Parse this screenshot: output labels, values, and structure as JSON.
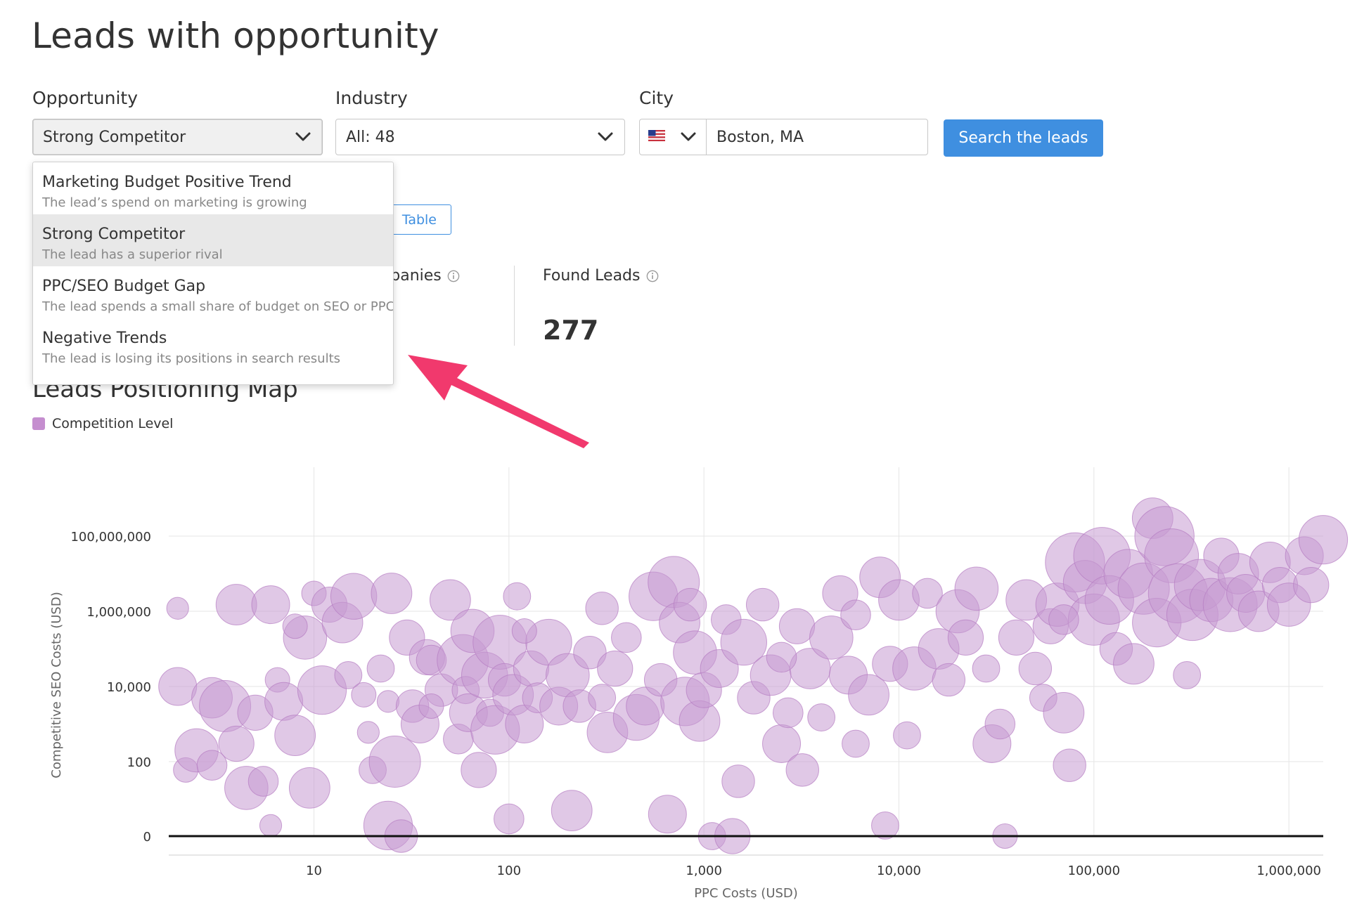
{
  "page": {
    "title": "Leads with opportunity"
  },
  "filters": {
    "opportunity": {
      "label": "Opportunity",
      "value": "Strong Competitor"
    },
    "industry": {
      "label": "Industry",
      "value": "All: 48"
    },
    "city": {
      "label": "City",
      "value": "Boston, MA",
      "country_icon": "us-flag-icon"
    },
    "search_button": "Search the leads"
  },
  "dropdown": {
    "items": [
      {
        "title": "Marketing Budget Positive Trend",
        "description": "The lead’s spend on marketing is growing",
        "selected": false
      },
      {
        "title": "Strong Competitor",
        "description": "The lead has a superior rival",
        "selected": true
      },
      {
        "title": "PPC/SEO Budget Gap",
        "description": "The lead spends a small share of budget on SEO or PPC",
        "selected": false
      },
      {
        "title": "Negative Trends",
        "description": "The lead is losing its positions in search results",
        "selected": false
      }
    ]
  },
  "view_toggle": {
    "table_label": "Table"
  },
  "stats": {
    "companies": {
      "label": "Companies"
    },
    "found_leads": {
      "label": "Found Leads",
      "value": "277"
    }
  },
  "map_section": {
    "title": "Leads Positioning Map",
    "legend": "Competition Level"
  },
  "colors": {
    "accent": "#3f8fe0",
    "bubble_fill": "#c79ad1",
    "bubble_stroke": "#b57cc2",
    "arrow": "#f1396d"
  },
  "chart_data": {
    "type": "scatter",
    "xlabel": "PPC Costs (USD)",
    "ylabel": "Competitive SEO Costs (USD)",
    "x_scale": "log",
    "y_scale": "log",
    "x_ticks": [
      {
        "value": 10,
        "label": "10"
      },
      {
        "value": 100,
        "label": "100"
      },
      {
        "value": 1000,
        "label": "1,000"
      },
      {
        "value": 10000,
        "label": "10,000"
      },
      {
        "value": 100000,
        "label": "100,000"
      },
      {
        "value": 1000000,
        "label": "1,000,000"
      }
    ],
    "y_ticks": [
      {
        "value": 0,
        "label": "0"
      },
      {
        "value": 100,
        "label": "100"
      },
      {
        "value": 10000,
        "label": "10,000"
      },
      {
        "value": 1000000,
        "label": "1,000,000"
      },
      {
        "value": 100000000,
        "label": "100,000,000"
      }
    ],
    "xlim": [
      1.8,
      1500000
    ],
    "grid": true,
    "legend": "top-left",
    "series": [
      {
        "name": "Competition Level",
        "points": [
          [
            2,
            1200000,
            0.2
          ],
          [
            2,
            10000,
            0.5
          ],
          [
            2.2,
            60,
            0.25
          ],
          [
            2.5,
            200,
            0.6
          ],
          [
            3,
            5000,
            0.55
          ],
          [
            3.5,
            3000,
            0.75
          ],
          [
            4,
            1500000,
            0.55
          ],
          [
            4,
            300,
            0.45
          ],
          [
            4.5,
            20,
            0.6
          ],
          [
            5,
            2000,
            0.45
          ],
          [
            6,
            1500000,
            0.5
          ],
          [
            5.5,
            30,
            0.35
          ],
          [
            6,
            2,
            0.2
          ],
          [
            6.5,
            15000,
            0.25
          ],
          [
            7,
            4000,
            0.5
          ],
          [
            8,
            500,
            0.55
          ],
          [
            9,
            200000,
            0.6
          ],
          [
            9.5,
            20,
            0.55
          ],
          [
            10,
            3000000,
            0.25
          ],
          [
            11,
            8000,
            0.7
          ],
          [
            12,
            1500000,
            0.45
          ],
          [
            14,
            500000,
            0.55
          ],
          [
            16,
            2500000,
            0.65
          ],
          [
            18,
            6000,
            0.25
          ],
          [
            19,
            600,
            0.2
          ],
          [
            20,
            60,
            0.3
          ],
          [
            22,
            30000,
            0.3
          ],
          [
            24,
            4000,
            0.2
          ],
          [
            25,
            3000000,
            0.55
          ],
          [
            24,
            2,
            0.7
          ],
          [
            26,
            100,
            0.75
          ],
          [
            28,
            0.5,
            0.4
          ],
          [
            30,
            200000,
            0.45
          ],
          [
            32,
            3000,
            0.4
          ],
          [
            35,
            1000,
            0.5
          ],
          [
            38,
            60000,
            0.45
          ],
          [
            40,
            50000,
            0.35
          ],
          [
            45,
            8000,
            0.4
          ],
          [
            50,
            2000000,
            0.55
          ],
          [
            55,
            400,
            0.35
          ],
          [
            58,
            50000,
            0.75
          ],
          [
            60,
            8000,
            0.3
          ],
          [
            62,
            2000,
            0.5
          ],
          [
            65,
            300000,
            0.6
          ],
          [
            70,
            60,
            0.45
          ],
          [
            75,
            20000,
            0.65
          ],
          [
            80,
            2000,
            0.3
          ],
          [
            85,
            700,
            0.7
          ],
          [
            90,
            150000,
            0.8
          ],
          [
            95,
            15000,
            0.4
          ],
          [
            100,
            3,
            0.35
          ],
          [
            105,
            6000,
            0.55
          ],
          [
            110,
            2500000,
            0.3
          ],
          [
            120,
            1000,
            0.5
          ],
          [
            130,
            30000,
            0.45
          ],
          [
            140,
            5000,
            0.35
          ],
          [
            160,
            150000,
            0.65
          ],
          [
            180,
            3000,
            0.5
          ],
          [
            200,
            20000,
            0.6
          ],
          [
            210,
            5,
            0.55
          ],
          [
            230,
            3000,
            0.4
          ],
          [
            260,
            80000,
            0.4
          ],
          [
            300,
            5000,
            0.3
          ],
          [
            320,
            600,
            0.55
          ],
          [
            350,
            30000,
            0.45
          ],
          [
            400,
            200000,
            0.35
          ],
          [
            450,
            1500,
            0.65
          ],
          [
            500,
            3000,
            0.5
          ],
          [
            550,
            2500000,
            0.7
          ],
          [
            600,
            15000,
            0.4
          ],
          [
            650,
            4,
            0.5
          ],
          [
            700,
            6000000,
            0.75
          ],
          [
            750,
            500000,
            0.55
          ],
          [
            800,
            4000,
            0.7
          ],
          [
            850,
            1500000,
            0.4
          ],
          [
            900,
            80000,
            0.6
          ],
          [
            950,
            1200,
            0.55
          ],
          [
            1000,
            8000,
            0.45
          ],
          [
            1100,
            0.5,
            0.3
          ],
          [
            1200,
            30000,
            0.5
          ],
          [
            1300,
            600000,
            0.35
          ],
          [
            1400,
            0.5,
            0.45
          ],
          [
            1600,
            150000,
            0.65
          ],
          [
            1800,
            5000,
            0.4
          ],
          [
            2000,
            1500000,
            0.4
          ],
          [
            2200,
            20000,
            0.55
          ],
          [
            2500,
            300,
            0.5
          ],
          [
            2700,
            2000,
            0.35
          ],
          [
            3000,
            400000,
            0.45
          ],
          [
            3200,
            60,
            0.4
          ],
          [
            3500,
            30000,
            0.55
          ],
          [
            4000,
            1500,
            0.3
          ],
          [
            4500,
            200000,
            0.6
          ],
          [
            5000,
            3000000,
            0.45
          ],
          [
            5500,
            20000,
            0.5
          ],
          [
            6000,
            800000,
            0.35
          ],
          [
            7000,
            6000,
            0.55
          ],
          [
            8000,
            8000000,
            0.55
          ],
          [
            8500,
            2,
            0.3
          ],
          [
            9000,
            40000,
            0.45
          ],
          [
            10000,
            2000000,
            0.55
          ],
          [
            11000,
            500,
            0.3
          ],
          [
            12000,
            30000,
            0.6
          ],
          [
            14000,
            3000000,
            0.35
          ],
          [
            16000,
            100000,
            0.55
          ],
          [
            18000,
            15000,
            0.4
          ],
          [
            20000,
            1000000,
            0.6
          ],
          [
            22000,
            200000,
            0.45
          ],
          [
            25000,
            4000000,
            0.6
          ],
          [
            28000,
            30000,
            0.3
          ],
          [
            30000,
            300,
            0.5
          ],
          [
            33000,
            1000,
            0.35
          ],
          [
            35000,
            0.5,
            0.25
          ],
          [
            40000,
            200000,
            0.45
          ],
          [
            45000,
            2000000,
            0.55
          ],
          [
            50000,
            30000,
            0.4
          ],
          [
            55000,
            5000,
            0.3
          ],
          [
            60000,
            400000,
            0.45
          ],
          [
            65000,
            1500000,
            0.6
          ],
          [
            70000,
            2000,
            0.55
          ],
          [
            75000,
            80,
            0.4
          ],
          [
            80000,
            20000000,
            0.9
          ],
          [
            90000,
            6000000,
            0.6
          ],
          [
            100000,
            600000,
            0.75
          ],
          [
            110000,
            30000000,
            0.85
          ],
          [
            120000,
            2000000,
            0.7
          ],
          [
            130000,
            100000,
            0.4
          ],
          [
            150000,
            10000000,
            0.7
          ],
          [
            160000,
            40000,
            0.55
          ],
          [
            180000,
            4000000,
            0.75
          ],
          [
            200000,
            300000000,
            0.55
          ],
          [
            210000,
            500000,
            0.7
          ],
          [
            230000,
            100000000,
            0.9
          ],
          [
            250000,
            30000000,
            0.8
          ],
          [
            270000,
            3000000,
            0.9
          ],
          [
            300000,
            20000,
            0.3
          ],
          [
            320000,
            800000,
            0.75
          ],
          [
            350000,
            5000000,
            0.75
          ],
          [
            400000,
            2000000,
            0.6
          ],
          [
            450000,
            30000000,
            0.45
          ],
          [
            500000,
            1500000,
            0.8
          ],
          [
            550000,
            10000000,
            0.55
          ],
          [
            600000,
            3000000,
            0.5
          ],
          [
            700000,
            1000000,
            0.55
          ],
          [
            800000,
            20000000,
            0.55
          ],
          [
            900000,
            5000000,
            0.45
          ],
          [
            1000000,
            1500000,
            0.6
          ],
          [
            1200000,
            30000000,
            0.5
          ],
          [
            1300000,
            5000000,
            0.45
          ],
          [
            1500000,
            80000000,
            0.7
          ],
          [
            40,
            3000,
            0.25
          ],
          [
            15,
            20000,
            0.3
          ],
          [
            8,
            400000,
            0.25
          ],
          [
            300,
            1200000,
            0.4
          ],
          [
            2500,
            60000,
            0.35
          ],
          [
            6000,
            300,
            0.3
          ],
          [
            70000,
            600000,
            0.35
          ],
          [
            1500,
            30,
            0.4
          ],
          [
            3,
            80,
            0.35
          ],
          [
            120,
            300000,
            0.25
          ]
        ]
      }
    ]
  }
}
